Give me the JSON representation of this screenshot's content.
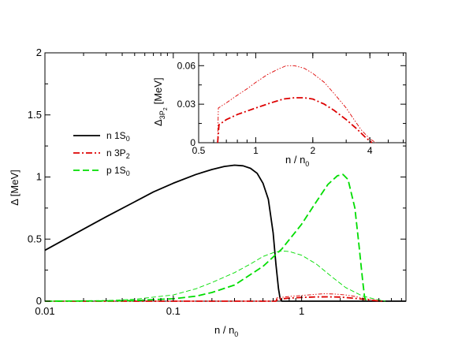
{
  "chart_data": [
    {
      "type": "line",
      "xlabel": "n / n",
      "xlabel_sub": "0",
      "ylabel": "Δ [MeV]",
      "x_scale": "log",
      "xlim": [
        0.01,
        6.5
      ],
      "ylim": [
        0,
        2
      ],
      "x_ticks": [
        {
          "value": 0.01,
          "label": "0.01"
        },
        {
          "value": 0.1,
          "label": "0.1"
        },
        {
          "value": 1,
          "label": "1"
        }
      ],
      "y_ticks": [
        {
          "value": 0,
          "label": "0"
        },
        {
          "value": 0.5,
          "label": "0.5"
        },
        {
          "value": 1,
          "label": "1"
        },
        {
          "value": 1.5,
          "label": "1.5"
        },
        {
          "value": 2,
          "label": "2"
        }
      ],
      "legend_position": "left",
      "legend": [
        {
          "label": "n 1S",
          "sub": "0",
          "color": "#000000",
          "dash": "solid"
        },
        {
          "label": "n 3P",
          "sub": "2",
          "color": "#dd0000",
          "dash": "dashdot"
        },
        {
          "label": "p 1S",
          "sub": "0",
          "color": "#00dd00",
          "dash": "dashed"
        }
      ],
      "series": [
        {
          "name": "n 1S0",
          "color": "#000000",
          "style": "solid",
          "width": 1.8,
          "points": [
            [
              0.01,
              0.41
            ],
            [
              0.015,
              0.51
            ],
            [
              0.02,
              0.58
            ],
            [
              0.03,
              0.68
            ],
            [
              0.05,
              0.8
            ],
            [
              0.07,
              0.88
            ],
            [
              0.1,
              0.95
            ],
            [
              0.15,
              1.02
            ],
            [
              0.2,
              1.06
            ],
            [
              0.25,
              1.085
            ],
            [
              0.3,
              1.095
            ],
            [
              0.35,
              1.09
            ],
            [
              0.4,
              1.07
            ],
            [
              0.45,
              1.03
            ],
            [
              0.5,
              0.95
            ],
            [
              0.55,
              0.82
            ],
            [
              0.6,
              0.55
            ],
            [
              0.63,
              0.3
            ],
            [
              0.66,
              0.1
            ],
            [
              0.68,
              0.02
            ],
            [
              0.7,
              0.0
            ],
            [
              6.5,
              0.0
            ]
          ]
        },
        {
          "name": "n 3P2 (thick)",
          "color": "#dd0000",
          "style": "dashdot",
          "width": 1.8,
          "points": [
            [
              0.01,
              0
            ],
            [
              0.63,
              0
            ],
            [
              0.65,
              0.015
            ],
            [
              0.8,
              0.025
            ],
            [
              1.0,
              0.03
            ],
            [
              1.3,
              0.034
            ],
            [
              1.6,
              0.035
            ],
            [
              2.0,
              0.033
            ],
            [
              2.5,
              0.025
            ],
            [
              3.0,
              0.016
            ],
            [
              3.5,
              0.008
            ],
            [
              4.0,
              0.002
            ],
            [
              4.3,
              0
            ]
          ]
        },
        {
          "name": "n 3P2 (thin)",
          "color": "#dd0000",
          "style": "dashdotdot",
          "width": 0.9,
          "points": [
            [
              0.01,
              0
            ],
            [
              0.63,
              0
            ],
            [
              0.64,
              0.026
            ],
            [
              0.8,
              0.038
            ],
            [
              1.0,
              0.046
            ],
            [
              1.3,
              0.056
            ],
            [
              1.5,
              0.06
            ],
            [
              1.8,
              0.058
            ],
            [
              2.2,
              0.05
            ],
            [
              2.6,
              0.038
            ],
            [
              3.0,
              0.025
            ],
            [
              3.5,
              0.012
            ],
            [
              4.0,
              0.003
            ],
            [
              4.2,
              0
            ]
          ]
        },
        {
          "name": "p 1S0 (thick)",
          "color": "#00dd00",
          "style": "dashed",
          "width": 1.8,
          "points": [
            [
              0.01,
              0
            ],
            [
              0.03,
              0.002
            ],
            [
              0.05,
              0.005
            ],
            [
              0.1,
              0.02
            ],
            [
              0.15,
              0.04
            ],
            [
              0.2,
              0.07
            ],
            [
              0.3,
              0.13
            ],
            [
              0.5,
              0.28
            ],
            [
              0.7,
              0.42
            ],
            [
              1.0,
              0.62
            ],
            [
              1.3,
              0.8
            ],
            [
              1.6,
              0.94
            ],
            [
              1.9,
              1.01
            ],
            [
              2.1,
              1.02
            ],
            [
              2.3,
              0.98
            ],
            [
              2.6,
              0.75
            ],
            [
              2.8,
              0.45
            ],
            [
              3.0,
              0.15
            ],
            [
              3.1,
              0.03
            ],
            [
              3.2,
              0
            ]
          ]
        },
        {
          "name": "p 1S0 (thin)",
          "color": "#00dd00",
          "style": "dashed-thin",
          "width": 0.9,
          "points": [
            [
              0.01,
              0
            ],
            [
              0.03,
              0.005
            ],
            [
              0.05,
              0.015
            ],
            [
              0.1,
              0.05
            ],
            [
              0.15,
              0.1
            ],
            [
              0.2,
              0.15
            ],
            [
              0.3,
              0.23
            ],
            [
              0.4,
              0.3
            ],
            [
              0.5,
              0.36
            ],
            [
              0.6,
              0.39
            ],
            [
              0.7,
              0.405
            ],
            [
              0.8,
              0.4
            ],
            [
              1.0,
              0.37
            ],
            [
              1.3,
              0.3
            ],
            [
              1.7,
              0.2
            ],
            [
              2.2,
              0.11
            ],
            [
              3.0,
              0.04
            ],
            [
              4.0,
              0.01
            ],
            [
              4.5,
              0
            ]
          ]
        }
      ]
    },
    {
      "type": "line",
      "role": "inset",
      "xlabel": "n / n",
      "xlabel_sub": "0",
      "ylabel": "Δ",
      "ylabel_sub": "3P",
      "ylabel_subsub": "2",
      "ylabel_unit": "[MeV]",
      "x_scale": "log",
      "xlim": [
        0.5,
        6.2
      ],
      "ylim": [
        0,
        0.07
      ],
      "x_ticks": [
        {
          "value": 0.5,
          "label": "0.5"
        },
        {
          "value": 1,
          "label": "1"
        },
        {
          "value": 2,
          "label": "2"
        },
        {
          "value": 4,
          "label": "4"
        }
      ],
      "y_ticks": [
        {
          "value": 0,
          "label": "0"
        },
        {
          "value": 0.03,
          "label": "0.03"
        },
        {
          "value": 0.06,
          "label": "0.06"
        }
      ],
      "series": [
        {
          "name": "n 3P2 (thin)",
          "color": "#dd0000",
          "style": "dashdotdot",
          "width": 0.9,
          "points": [
            [
              0.63,
              0.0
            ],
            [
              0.635,
              0.027
            ],
            [
              0.7,
              0.031
            ],
            [
              0.8,
              0.037
            ],
            [
              0.9,
              0.042
            ],
            [
              1.0,
              0.047
            ],
            [
              1.15,
              0.053
            ],
            [
              1.3,
              0.057
            ],
            [
              1.45,
              0.06
            ],
            [
              1.6,
              0.06
            ],
            [
              1.8,
              0.058
            ],
            [
              2.0,
              0.054
            ],
            [
              2.3,
              0.047
            ],
            [
              2.6,
              0.038
            ],
            [
              3.0,
              0.027
            ],
            [
              3.3,
              0.018
            ],
            [
              3.6,
              0.01
            ],
            [
              4.0,
              0.003
            ],
            [
              4.3,
              0.0
            ]
          ]
        },
        {
          "name": "n 3P2 (thick)",
          "color": "#dd0000",
          "style": "dashdot",
          "width": 1.8,
          "points": [
            [
              0.63,
              0.0
            ],
            [
              0.64,
              0.014
            ],
            [
              0.7,
              0.018
            ],
            [
              0.8,
              0.022
            ],
            [
              1.0,
              0.027
            ],
            [
              1.2,
              0.031
            ],
            [
              1.4,
              0.034
            ],
            [
              1.6,
              0.035
            ],
            [
              1.8,
              0.035
            ],
            [
              2.0,
              0.034
            ],
            [
              2.3,
              0.03
            ],
            [
              2.6,
              0.025
            ],
            [
              3.0,
              0.018
            ],
            [
              3.4,
              0.011
            ],
            [
              3.8,
              0.004
            ],
            [
              4.1,
              0.0
            ]
          ]
        }
      ]
    }
  ]
}
